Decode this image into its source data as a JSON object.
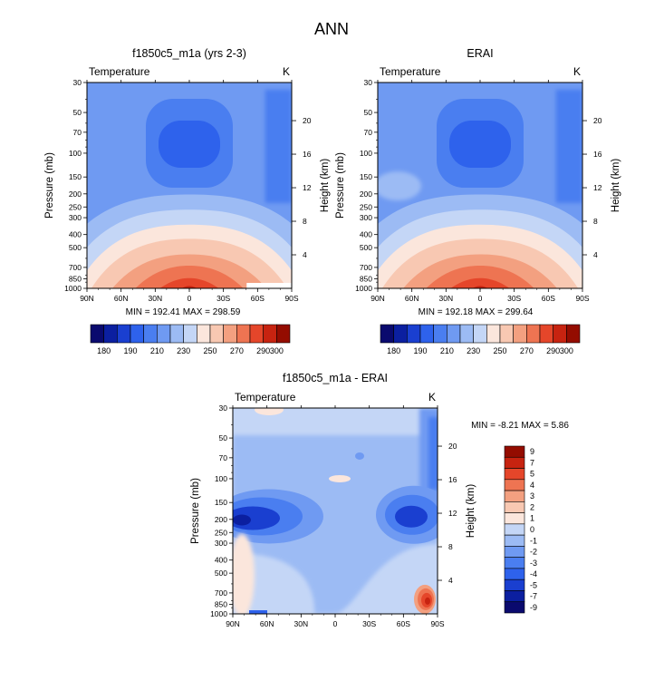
{
  "figure_title": "ANN",
  "colors": {
    "abs_palette": [
      "#0a0a6e",
      "#0b1fa0",
      "#1a3fd0",
      "#2e62ec",
      "#4a7ef0",
      "#6f9af2",
      "#9cbbf4",
      "#c4d6f6",
      "#fbe6dc",
      "#f8c8b2",
      "#f3a080",
      "#ee7452",
      "#e5462a",
      "#c72310",
      "#940c00"
    ],
    "diff_palette": [
      "#0a0a6e",
      "#0b1fa0",
      "#1a3fd0",
      "#2e62ec",
      "#4a7ef0",
      "#6f9af2",
      "#9cbbf4",
      "#c4d6f6",
      "#fbe6dc",
      "#f8c8b2",
      "#f3a080",
      "#ee7452",
      "#e5462a",
      "#c72310",
      "#940c00"
    ]
  },
  "chart_data": [
    {
      "type": "heatmap",
      "title": "f1850c5_m1a (yrs 2-3)",
      "variable_label": "Temperature",
      "units_label": "K",
      "ylabel": "Pressure (mb)",
      "ylabel_right": "Height (km)",
      "x_ticks": [
        "90N",
        "60N",
        "30N",
        "0",
        "30S",
        "60S",
        "90S"
      ],
      "y_ticks": [
        "30",
        "50",
        "70",
        "100",
        "150",
        "200",
        "250",
        "300",
        "400",
        "500",
        "700",
        "850",
        "1000"
      ],
      "y_right_ticks": [
        "20",
        "16",
        "12",
        "8",
        "4"
      ],
      "xlim": [
        90,
        -90
      ],
      "ylim": [
        1000,
        30
      ],
      "y_scale": "log",
      "min_label": "MIN = 192.41",
      "max_label": "MAX = 298.59",
      "min": 192.41,
      "max": 298.59,
      "colorbar_orientation": "horizontal",
      "colorbar_labels": [
        "180",
        "190",
        "210",
        "230",
        "250",
        "270",
        "290",
        "300"
      ]
    },
    {
      "type": "heatmap",
      "title": "ERAI",
      "variable_label": "Temperature",
      "units_label": "K",
      "ylabel": "Pressure (mb)",
      "ylabel_right": "Height (km)",
      "x_ticks": [
        "90N",
        "60N",
        "30N",
        "0",
        "30S",
        "60S",
        "90S"
      ],
      "y_ticks": [
        "30",
        "50",
        "70",
        "100",
        "150",
        "200",
        "250",
        "300",
        "400",
        "500",
        "700",
        "850",
        "1000"
      ],
      "y_right_ticks": [
        "20",
        "16",
        "12",
        "8",
        "4"
      ],
      "xlim": [
        90,
        -90
      ],
      "ylim": [
        1000,
        30
      ],
      "y_scale": "log",
      "min_label": "MIN = 192.18",
      "max_label": "MAX = 299.64",
      "min": 192.18,
      "max": 299.64,
      "colorbar_orientation": "horizontal",
      "colorbar_labels": [
        "180",
        "190",
        "210",
        "230",
        "250",
        "270",
        "290",
        "300"
      ]
    },
    {
      "type": "heatmap",
      "title": "f1850c5_m1a - ERAI",
      "variable_label": "Temperature",
      "units_label": "K",
      "ylabel": "Pressure (mb)",
      "ylabel_right": "Height (km)",
      "x_ticks": [
        "90N",
        "60N",
        "30N",
        "0",
        "30S",
        "60S",
        "90S"
      ],
      "y_ticks": [
        "30",
        "50",
        "70",
        "100",
        "150",
        "200",
        "250",
        "300",
        "400",
        "500",
        "700",
        "850",
        "1000"
      ],
      "y_right_ticks": [
        "20",
        "16",
        "12",
        "8",
        "4"
      ],
      "xlim": [
        90,
        -90
      ],
      "ylim": [
        1000,
        30
      ],
      "y_scale": "log",
      "min_label": "MIN =  -8.21",
      "max_label": "MAX =  5.86",
      "min": -8.21,
      "max": 5.86,
      "colorbar_orientation": "vertical",
      "colorbar_labels": [
        "9",
        "7",
        "5",
        "4",
        "3",
        "2",
        "1",
        "0",
        "-1",
        "-2",
        "-3",
        "-4",
        "-5",
        "-7",
        "-9"
      ]
    }
  ]
}
